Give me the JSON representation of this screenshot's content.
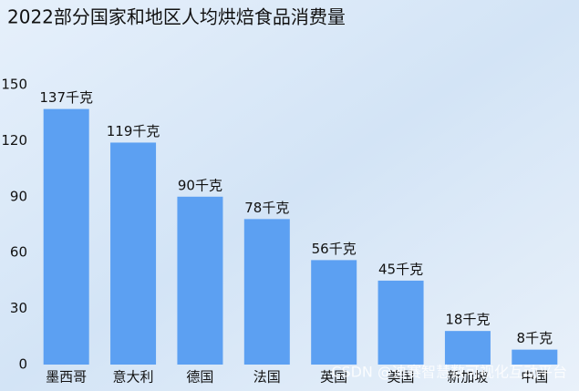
{
  "chart_data": {
    "type": "bar",
    "title": "2022部分国家和地区人均烘焙食品消费量",
    "categories": [
      "墨西哥",
      "意大利",
      "德国",
      "法国",
      "英国",
      "美国",
      "新加坡",
      "中国"
    ],
    "values": [
      137,
      119,
      90,
      78,
      56,
      45,
      18,
      8
    ],
    "value_labels": [
      "137千克",
      "119千克",
      "90千克",
      "78千克",
      "56千克",
      "45千克",
      "18千克",
      "8千克"
    ],
    "color": "#5ca0f2",
    "ylim": [
      0,
      150
    ],
    "yticks": [
      0,
      30,
      60,
      90,
      120,
      150
    ],
    "grid": false,
    "watermark": "CSDN @迪赛智慧数可视化互动平台"
  }
}
